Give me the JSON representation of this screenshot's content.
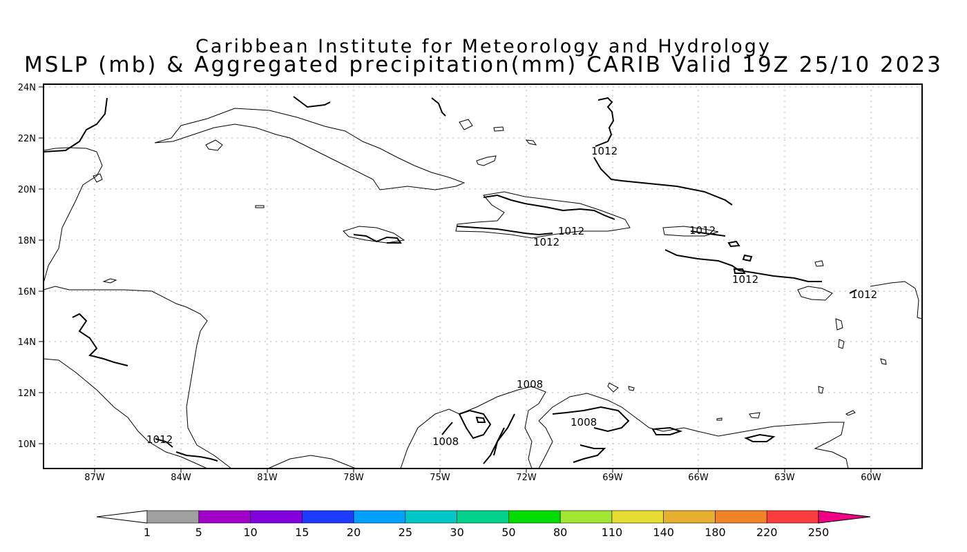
{
  "title": {
    "line1": "Caribbean Institute for Meteorology and Hydrology",
    "line2": "MSLP (mb) & Aggregated precipitation(mm) CARIB Valid 19Z 25/10 2023"
  },
  "map": {
    "lat_labels": [
      "24N",
      "22N",
      "20N",
      "18N",
      "16N",
      "14N",
      "12N",
      "10N"
    ],
    "lon_labels": [
      "87W",
      "84W",
      "81W",
      "78W",
      "75W",
      "72W",
      "69W",
      "66W",
      "63W",
      "60W"
    ],
    "isobar_labels": [
      "1012",
      "1012",
      "1012",
      "1012",
      "1012",
      "1012",
      "1012",
      "1008",
      "1008",
      "1008"
    ]
  },
  "colorbar": {
    "labels": [
      "1",
      "5",
      "10",
      "15",
      "20",
      "25",
      "30",
      "50",
      "80",
      "110",
      "140",
      "180",
      "220",
      "250"
    ],
    "colors": [
      "#a0a0a0",
      "#a000c8",
      "#8200dc",
      "#1e3cff",
      "#00a0ff",
      "#00c8c8",
      "#00d28c",
      "#00dc00",
      "#a0e632",
      "#e6dc32",
      "#e6af2d",
      "#f08228",
      "#fa3c3c",
      "#f00082"
    ]
  }
}
